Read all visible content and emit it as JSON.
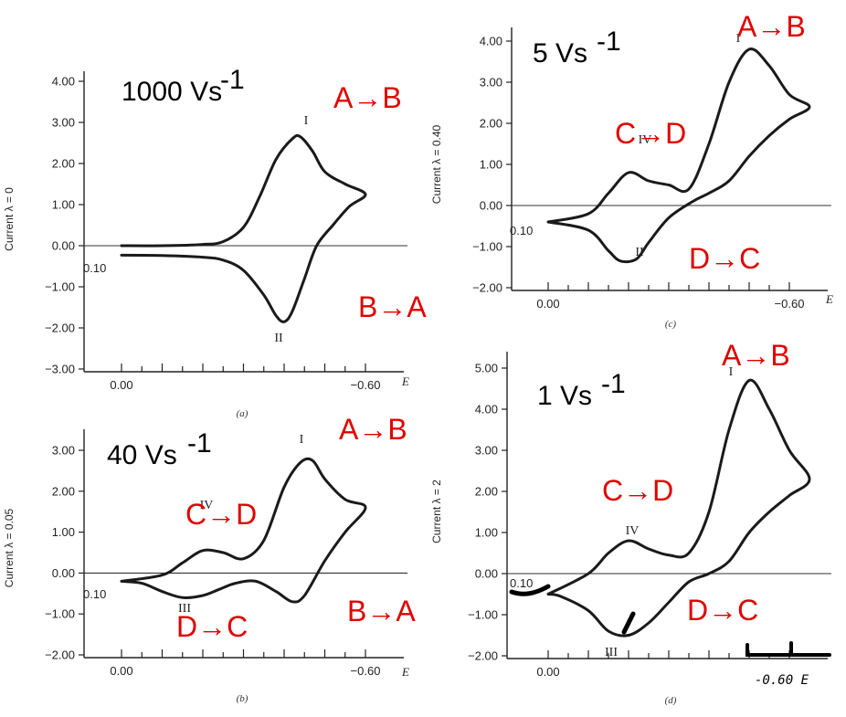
{
  "chart_data": [
    {
      "type": "line",
      "panel": "(a)",
      "rate_label": "1000 Vs",
      "rate_exp": "-1",
      "ylabel": "Current λ = 0",
      "xlabel": "E",
      "ylim": [
        -3.0,
        4.0
      ],
      "yticks": [
        "4.00",
        "3.00",
        "2.00",
        "1.00",
        "0.00",
        "-1.00",
        "-2.00",
        "-3.00"
      ],
      "xticks": [
        "0.00",
        "-0.60"
      ],
      "start_label": "0.10",
      "peaks": [
        "I",
        "II"
      ],
      "annotations": [
        "A→B",
        "B→A"
      ],
      "series": [
        {
          "x": [
            0.0,
            -0.1,
            -0.2,
            -0.25,
            -0.3,
            -0.34,
            -0.38,
            -0.42,
            -0.44,
            -0.47,
            -0.5,
            -0.55,
            -0.6,
            -0.56,
            -0.52,
            -0.48,
            -0.45,
            -0.42,
            -0.4,
            -0.38,
            -0.35,
            -0.3,
            -0.25,
            -0.2,
            -0.1,
            0.0
          ],
          "y": [
            0.0,
            0.0,
            0.03,
            0.1,
            0.45,
            1.2,
            2.1,
            2.6,
            2.65,
            2.3,
            1.8,
            1.5,
            1.25,
            0.95,
            0.5,
            0.0,
            -0.8,
            -1.6,
            -1.85,
            -1.7,
            -1.2,
            -0.6,
            -0.35,
            -0.28,
            -0.24,
            -0.23
          ]
        }
      ]
    },
    {
      "type": "line",
      "panel": "(b)",
      "rate_label": "40 Vs",
      "rate_exp": "-1",
      "ylabel": "Current λ = 0.05",
      "xlabel": "E",
      "ylim": [
        -2.0,
        3.0
      ],
      "yticks": [
        "3.00",
        "2.00",
        "1.00",
        "0.00",
        "-1.00",
        "-2.00"
      ],
      "xticks": [
        "0.00",
        "-0.60"
      ],
      "start_label": "0.10",
      "peaks": [
        "I",
        "IV",
        "III"
      ],
      "annotations": [
        "A→B",
        "C→D",
        "D→C",
        "B→A"
      ],
      "series": [
        {
          "x": [
            0.0,
            -0.1,
            -0.15,
            -0.2,
            -0.25,
            -0.3,
            -0.35,
            -0.4,
            -0.44,
            -0.47,
            -0.5,
            -0.55,
            -0.6,
            -0.55,
            -0.5,
            -0.45,
            -0.42,
            -0.38,
            -0.33,
            -0.28,
            -0.24,
            -0.2,
            -0.15,
            -0.1,
            -0.05,
            0.0
          ],
          "y": [
            -0.2,
            -0.05,
            0.25,
            0.55,
            0.5,
            0.35,
            0.8,
            2.1,
            2.7,
            2.75,
            2.3,
            1.8,
            1.6,
            1.0,
            0.3,
            -0.55,
            -0.7,
            -0.45,
            -0.2,
            -0.25,
            -0.4,
            -0.55,
            -0.6,
            -0.45,
            -0.25,
            -0.2
          ]
        }
      ]
    },
    {
      "type": "line",
      "panel": "(c)",
      "rate_label": "5 Vs",
      "rate_exp": "-1",
      "ylabel": "Current λ = 0.40",
      "xlabel": "E",
      "ylim": [
        -2.0,
        4.0
      ],
      "yticks": [
        "4.00",
        "3.00",
        "2.00",
        "1.00",
        "0.00",
        "-1.00",
        "-2.00"
      ],
      "xticks": [
        "0.00",
        "-0.60"
      ],
      "start_label": "0.10",
      "peaks": [
        "I",
        "IV",
        "II"
      ],
      "annotations": [
        "A→B",
        "C→D",
        "D→C"
      ],
      "series": [
        {
          "x": [
            0.0,
            -0.1,
            -0.15,
            -0.2,
            -0.25,
            -0.3,
            -0.35,
            -0.4,
            -0.45,
            -0.5,
            -0.55,
            -0.6,
            -0.65,
            -0.6,
            -0.55,
            -0.5,
            -0.45,
            -0.4,
            -0.36,
            -0.3,
            -0.25,
            -0.22,
            -0.18,
            -0.15,
            -0.1,
            0.0
          ],
          "y": [
            -0.4,
            -0.2,
            0.3,
            0.8,
            0.6,
            0.5,
            0.4,
            1.5,
            3.0,
            3.8,
            3.4,
            2.7,
            2.4,
            2.1,
            1.7,
            1.2,
            0.6,
            0.3,
            0.1,
            -0.3,
            -0.9,
            -1.3,
            -1.35,
            -1.1,
            -0.6,
            -0.4
          ]
        }
      ]
    },
    {
      "type": "line",
      "panel": "(d)",
      "rate_label": "1 Vs",
      "rate_exp": "-1",
      "ylabel": "Current λ = 2",
      "xlabel": "E",
      "ylim": [
        -2.0,
        5.0
      ],
      "yticks": [
        "5.00",
        "4.00",
        "3.00",
        "2.00",
        "1.00",
        "0.00",
        "-1.00",
        "-2.00"
      ],
      "xticks": [
        "0.00"
      ],
      "hand_tick": "-0.60 E",
      "start_label": "0.10",
      "peaks": [
        "I",
        "IV",
        "III"
      ],
      "annotations": [
        "A→B",
        "C→D",
        "D→C"
      ],
      "series": [
        {
          "x": [
            0.0,
            -0.1,
            -0.15,
            -0.2,
            -0.25,
            -0.3,
            -0.35,
            -0.4,
            -0.45,
            -0.5,
            -0.55,
            -0.6,
            -0.65,
            -0.6,
            -0.55,
            -0.5,
            -0.45,
            -0.4,
            -0.35,
            -0.3,
            -0.25,
            -0.2,
            -0.15,
            -0.1,
            -0.03,
            0.0
          ],
          "y": [
            -0.5,
            0.0,
            0.5,
            0.8,
            0.6,
            0.45,
            0.5,
            1.5,
            3.5,
            4.7,
            4.0,
            3.0,
            2.3,
            1.9,
            1.5,
            1.0,
            0.3,
            0.0,
            -0.2,
            -0.7,
            -1.2,
            -1.5,
            -1.4,
            -0.9,
            -0.55,
            -0.5
          ]
        }
      ]
    }
  ]
}
